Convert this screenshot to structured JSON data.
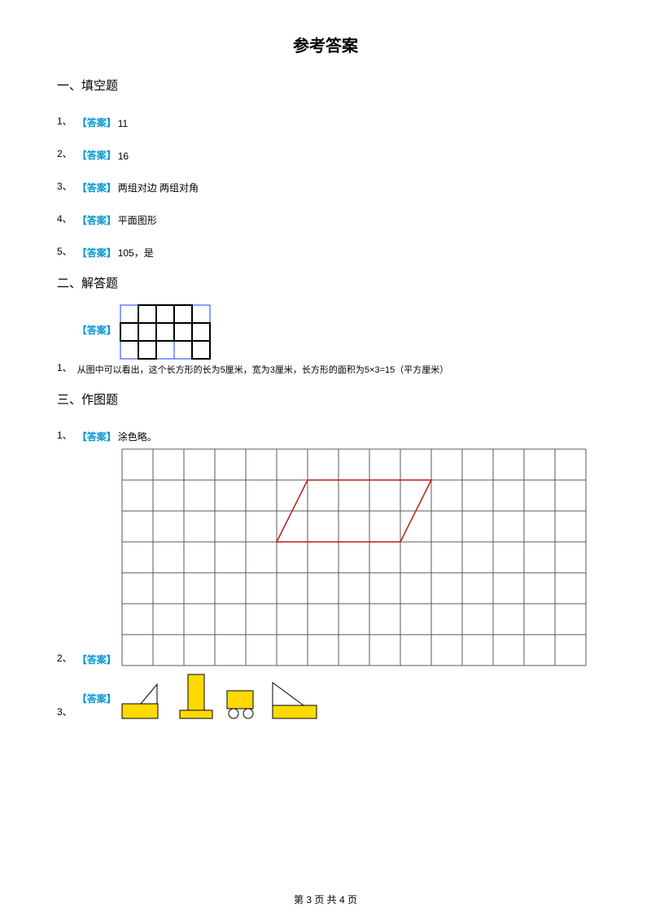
{
  "title": "参考答案",
  "s1": {
    "header": "一、填空题",
    "answerTag": "【答案】",
    "items": [
      {
        "num": "1、",
        "text": "11"
      },
      {
        "num": "2、",
        "text": "16"
      },
      {
        "num": "3、",
        "text": "两组对边 两组对角"
      },
      {
        "num": "4、",
        "text": "平面图形"
      },
      {
        "num": "5、",
        "text": "105，是"
      }
    ]
  },
  "s2": {
    "header": "二、解答题",
    "answerTag": "【答案】",
    "items": [
      {
        "num": "1、",
        "caption": "从图中可以看出，这个长方形的长为5厘米，宽为3厘米，长方形的面积为5×3=15（平方厘米）"
      }
    ],
    "gridFig": {
      "cols": 5,
      "rows": 3,
      "cell": 22,
      "blueStroke": "#1040ff",
      "blackStroke": "#000000",
      "filledCells": [
        [
          0,
          1
        ],
        [
          0,
          2
        ],
        [
          0,
          3
        ],
        [
          1,
          0
        ],
        [
          1,
          1
        ],
        [
          1,
          2
        ],
        [
          1,
          3
        ],
        [
          1,
          4
        ],
        [
          2,
          1
        ],
        [
          2,
          4
        ]
      ]
    }
  },
  "s3": {
    "header": "三、作图题",
    "answerTag": "【答案】",
    "items": [
      {
        "num": "1、",
        "text": "涂色略。"
      },
      {
        "num": "2、",
        "text": ""
      },
      {
        "num": "3、",
        "text": ""
      }
    ],
    "bigGrid": {
      "cols": 15,
      "rows": 7,
      "cell": 38,
      "gridColor": "#5a5a5a",
      "paraColor": "#c01818",
      "para": {
        "r0": 1,
        "r1": 3,
        "c0": 5,
        "c1": 9,
        "shear": 1
      }
    },
    "shapes": {
      "yellow": "#ffd900",
      "stroke": "#000000"
    }
  },
  "footer": "第 3 页 共 4 页"
}
